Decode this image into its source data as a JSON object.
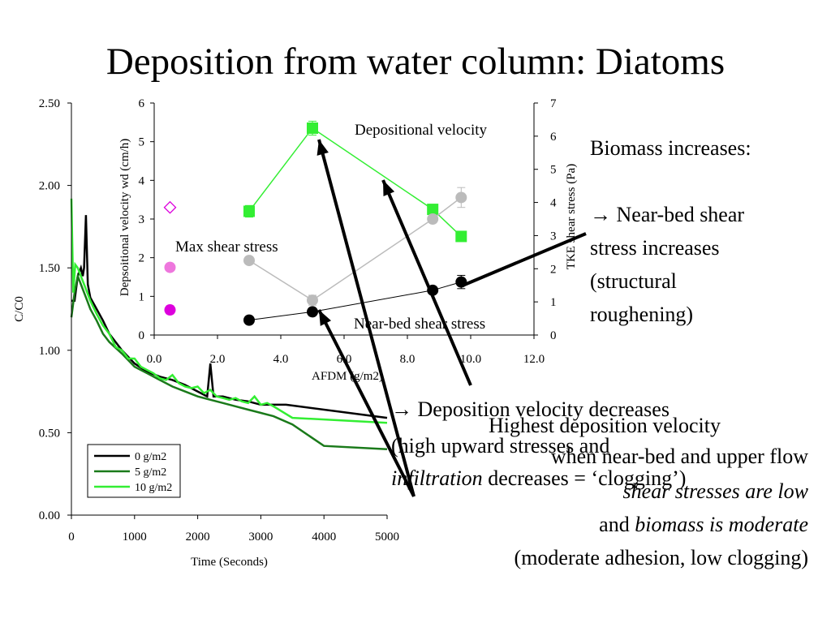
{
  "slide": {
    "title": "Deposition from water column: Diatoms"
  },
  "text": {
    "biomass_increases": "Biomass increases:",
    "arrow_glyph": "→",
    "near_bed_line1": "Near-bed shear",
    "near_bed_line2": "stress increases",
    "near_bed_line3": "(structural",
    "near_bed_line4": "roughening)",
    "dep_line1": "Deposition velocity decreases",
    "dep_line2": "(high upward stresses and",
    "dep_line3_italic": "infiltration",
    "dep_line3_rest": " decreases = ‘clogging’)",
    "highest_line1": "Highest deposition velocity",
    "highest_line2": "when near-bed and upper flow",
    "highest_line3_italic": "shear stresses are low",
    "highest_line4_plain": "and ",
    "highest_line4_italic": "biomass is moderate",
    "highest_line5": "(moderate adhesion, low clogging)"
  },
  "chart_data": [
    {
      "type": "line",
      "xlabel": "Time (Seconds)",
      "ylabel": "C/C0",
      "xlim": [
        0,
        5000
      ],
      "ylim": [
        0,
        2.5
      ],
      "x_ticks": [
        "0",
        "1000",
        "2000",
        "3000",
        "4000",
        "5000"
      ],
      "y_ticks": [
        "0.00",
        "0.50",
        "1.00",
        "1.50",
        "2.00",
        "2.50"
      ],
      "legend_position": "bottom-left",
      "series": [
        {
          "name": "0 g/m2",
          "color": "#000000",
          "x": [
            0,
            50,
            100,
            150,
            180,
            200,
            230,
            260,
            300,
            400,
            500,
            600,
            800,
            1000,
            1200,
            1400,
            1600,
            1800,
            2000,
            2150,
            2200,
            2250,
            2400,
            2600,
            2800,
            3000,
            3200,
            3400,
            5000
          ],
          "values": [
            1.3,
            1.3,
            1.45,
            1.5,
            1.45,
            1.5,
            1.82,
            1.4,
            1.32,
            1.25,
            1.18,
            1.1,
            1.0,
            0.92,
            0.87,
            0.84,
            0.82,
            0.79,
            0.75,
            0.72,
            0.92,
            0.72,
            0.72,
            0.7,
            0.69,
            0.67,
            0.67,
            0.67,
            0.59
          ]
        },
        {
          "name": "5 g/m2",
          "color": "#1a7a1a",
          "x": [
            0,
            50,
            100,
            150,
            200,
            250,
            300,
            400,
            500,
            600,
            800,
            1000,
            1200,
            1400,
            1600,
            1800,
            2000,
            2200,
            2400,
            2600,
            2800,
            3000,
            3200,
            3500,
            4000,
            5000
          ],
          "values": [
            1.2,
            1.35,
            1.45,
            1.4,
            1.35,
            1.3,
            1.25,
            1.18,
            1.1,
            1.05,
            0.98,
            0.9,
            0.86,
            0.82,
            0.78,
            0.75,
            0.72,
            0.7,
            0.68,
            0.66,
            0.64,
            0.62,
            0.6,
            0.55,
            0.42,
            0.4
          ]
        },
        {
          "name": "10 g/m2",
          "color": "#33ee33",
          "x": [
            0,
            30,
            60,
            100,
            150,
            200,
            250,
            300,
            400,
            500,
            600,
            700,
            800,
            900,
            1000,
            1100,
            1200,
            1300,
            1400,
            1500,
            1600,
            1700,
            1800,
            1900,
            2000,
            2100,
            2200,
            2300,
            2400,
            2500,
            2600,
            2700,
            2800,
            2900,
            3000,
            3100,
            3200,
            3500,
            5000
          ],
          "values": [
            1.92,
            1.35,
            1.52,
            1.5,
            1.45,
            1.4,
            1.35,
            1.3,
            1.22,
            1.15,
            1.1,
            1.02,
            1.0,
            0.95,
            0.95,
            0.9,
            0.88,
            0.86,
            0.83,
            0.82,
            0.85,
            0.8,
            0.78,
            0.77,
            0.78,
            0.74,
            0.76,
            0.72,
            0.71,
            0.7,
            0.71,
            0.69,
            0.68,
            0.72,
            0.67,
            0.68,
            0.66,
            0.59,
            0.56
          ]
        }
      ]
    },
    {
      "type": "scatter",
      "xlabel": "AFDM (g/m2)",
      "ylabel": "Depsoitional velocity wd (cm/h)",
      "y2label": "TKE shear stress (Pa)",
      "xlim": [
        0,
        12
      ],
      "ylim": [
        0,
        6
      ],
      "y2lim": [
        0,
        7
      ],
      "x_ticks": [
        "0.0",
        "2.0",
        "4.0",
        "6.0",
        "8.0",
        "10.0",
        "12.0"
      ],
      "y_ticks": [
        "0",
        "1",
        "2",
        "3",
        "4",
        "5",
        "6"
      ],
      "y2_ticks": [
        "0",
        "1",
        "2",
        "3",
        "4",
        "5",
        "6",
        "7"
      ],
      "annotations": [
        "Depositional velocity",
        "Max shear stress",
        "Near-bed shear stress"
      ],
      "series": [
        {
          "color": "#33ee33",
          "axis": "left",
          "x": [
            3,
            5,
            8.8,
            9.7
          ],
          "values": [
            3.2,
            5.35,
            3.25,
            2.55
          ],
          "errors": [
            0.15,
            0.18,
            0.12,
            0.12
          ]
        },
        {
          "color": "#bbbbbb",
          "axis": "right",
          "x": [
            3,
            5,
            8.8,
            9.7
          ],
          "values": [
            2.25,
            1.05,
            3.5,
            4.15
          ],
          "errors": [
            0.05,
            0.15,
            0.1,
            0.3
          ]
        },
        {
          "color": "#000000",
          "axis": "right",
          "x": [
            3,
            5,
            8.8,
            9.7
          ],
          "values": [
            0.45,
            0.7,
            1.35,
            1.6
          ],
          "errors": [
            0.1,
            0.05,
            0.07,
            0.2
          ]
        },
        {
          "color": "#dd00dd",
          "axis": "left",
          "x": [
            0.5
          ],
          "values": [
            0.65
          ],
          "errors": [
            0.1
          ]
        },
        {
          "color": "#ee77dd",
          "axis": "left",
          "x": [
            0.5
          ],
          "values": [
            1.75
          ],
          "errors": [
            0
          ]
        },
        {
          "color": "#dd00dd",
          "axis": "left",
          "marker": "diamond-open",
          "x": [
            0.5
          ],
          "values": [
            3.3
          ],
          "errors": [
            0
          ]
        }
      ]
    }
  ]
}
